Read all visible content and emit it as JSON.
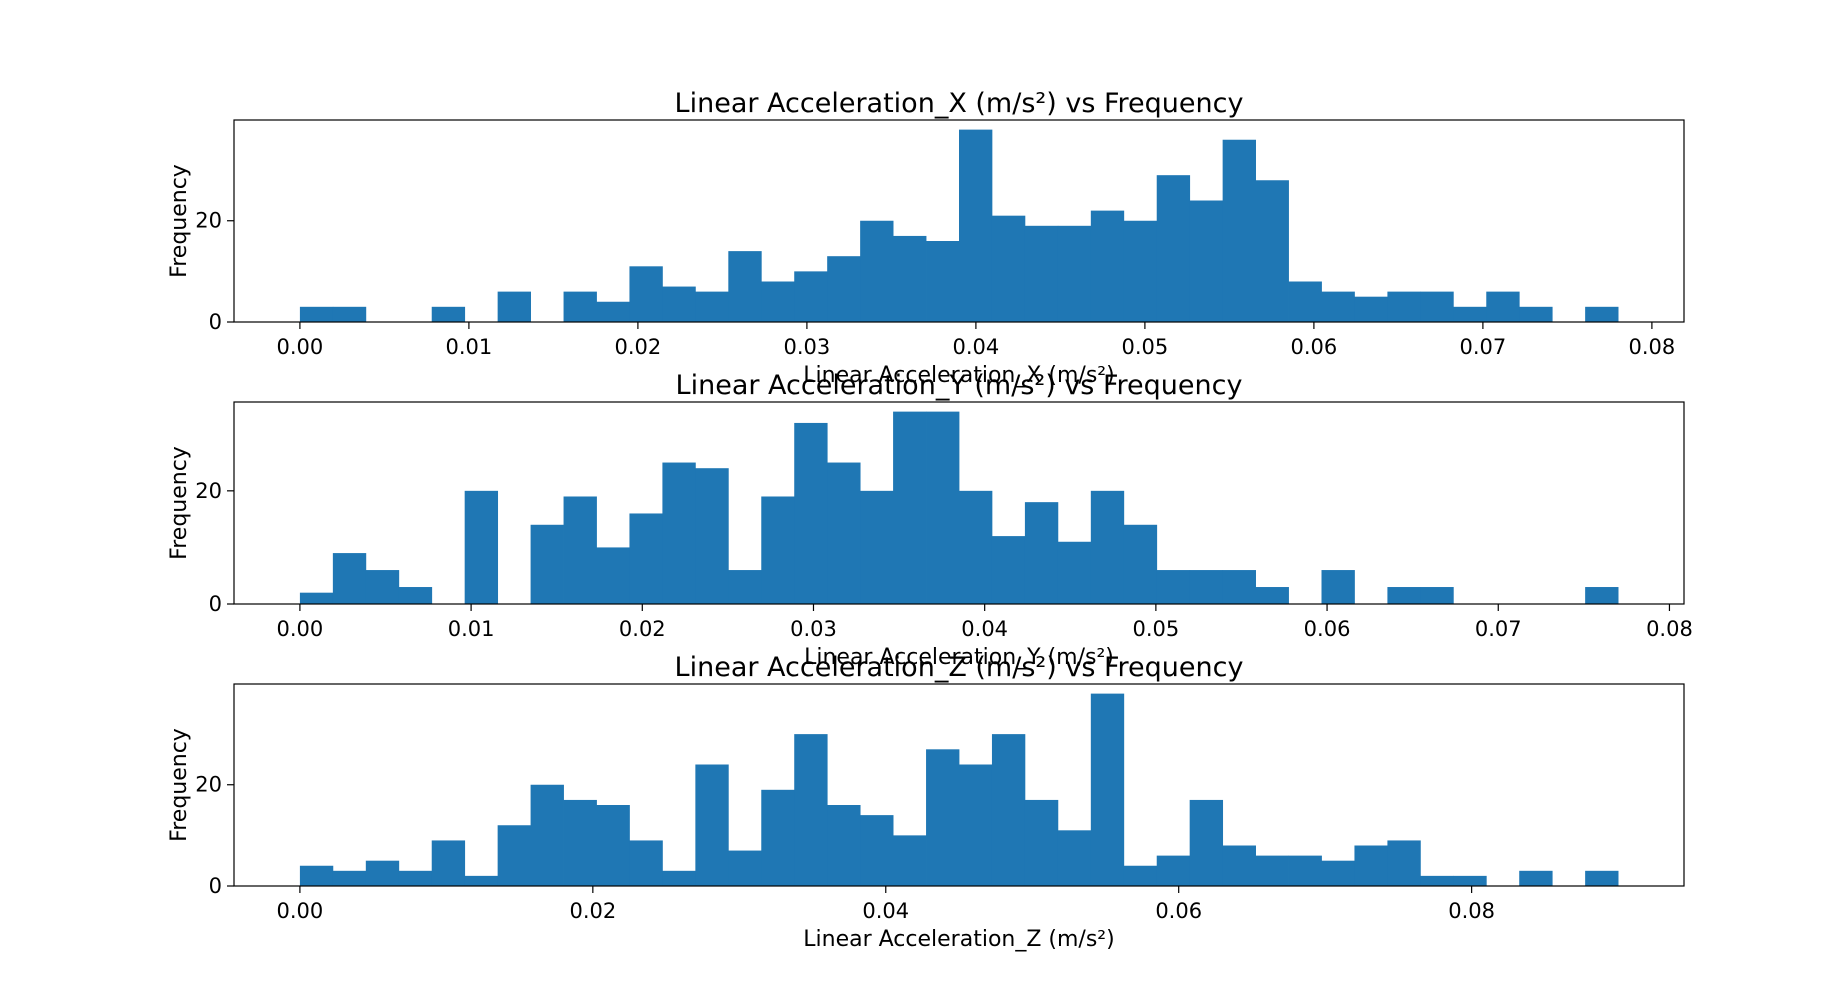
{
  "chart_data": [
    {
      "type": "bar",
      "title": "Linear Acceleration_X (m/s²) vs Frequency",
      "xlabel": "Linear Acceleration_X (m/s²)",
      "ylabel": "Frequency",
      "xlim": [
        -0.0039,
        0.0819
      ],
      "ylim": [
        0,
        39.9
      ],
      "xticks": [
        0.0,
        0.01,
        0.02,
        0.03,
        0.04,
        0.05,
        0.06,
        0.07,
        0.08
      ],
      "xtick_labels": [
        "0.00",
        "0.01",
        "0.02",
        "0.03",
        "0.04",
        "0.05",
        "0.06",
        "0.07",
        "0.08"
      ],
      "yticks": [
        0,
        20
      ],
      "ytick_labels": [
        "0",
        "20"
      ],
      "bin_start": 0.0,
      "bin_width": 0.00195,
      "values": [
        3,
        3,
        0,
        0,
        3,
        0,
        6,
        0,
        6,
        4,
        11,
        7,
        6,
        14,
        8,
        10,
        13,
        20,
        17,
        16,
        38,
        21,
        19,
        19,
        22,
        20,
        29,
        24,
        36,
        28,
        8,
        6,
        5,
        6,
        6,
        3,
        6,
        3,
        0,
        3
      ],
      "color": "#1f77b4"
    },
    {
      "type": "bar",
      "title": "Linear Acceleration_Y (m/s²) vs Frequency",
      "xlabel": "Linear Acceleration_Y (m/s²)",
      "ylabel": "Frequency",
      "xlim": [
        -0.00385,
        0.08085
      ],
      "ylim": [
        0,
        35.7
      ],
      "xticks": [
        0.0,
        0.01,
        0.02,
        0.03,
        0.04,
        0.05,
        0.06,
        0.07,
        0.08
      ],
      "xtick_labels": [
        "0.00",
        "0.01",
        "0.02",
        "0.03",
        "0.04",
        "0.05",
        "0.06",
        "0.07",
        "0.08"
      ],
      "yticks": [
        0,
        20
      ],
      "ytick_labels": [
        "0",
        "20"
      ],
      "bin_start": 0.0,
      "bin_width": 0.001925,
      "values": [
        2,
        9,
        6,
        3,
        0,
        20,
        0,
        14,
        19,
        10,
        16,
        25,
        24,
        6,
        19,
        32,
        25,
        20,
        34,
        34,
        20,
        12,
        18,
        11,
        20,
        14,
        6,
        6,
        6,
        3,
        0,
        6,
        0,
        3,
        3,
        0,
        0,
        0,
        0,
        3
      ],
      "color": "#1f77b4"
    },
    {
      "type": "bar",
      "title": "Linear Acceleration_Z (m/s²) vs Frequency",
      "xlabel": "Linear Acceleration_Z (m/s²)",
      "ylabel": "Frequency",
      "xlim": [
        -0.0045,
        0.0945
      ],
      "ylim": [
        0,
        39.9
      ],
      "xticks": [
        0.0,
        0.02,
        0.04,
        0.06,
        0.08
      ],
      "xtick_labels": [
        "0.00",
        "0.02",
        "0.04",
        "0.06",
        "0.08"
      ],
      "yticks": [
        0,
        20
      ],
      "ytick_labels": [
        "0",
        "20"
      ],
      "bin_start": 0.0,
      "bin_width": 0.00225,
      "values": [
        4,
        3,
        5,
        3,
        9,
        2,
        12,
        20,
        17,
        16,
        9,
        3,
        24,
        7,
        19,
        30,
        16,
        14,
        10,
        27,
        24,
        30,
        17,
        11,
        38,
        4,
        6,
        17,
        8,
        6,
        6,
        5,
        8,
        9,
        2,
        2,
        0,
        3,
        0,
        3
      ],
      "color": "#1f77b4"
    }
  ]
}
